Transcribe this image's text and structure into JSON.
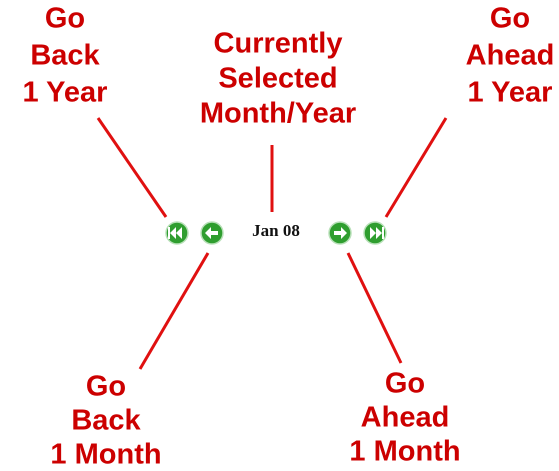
{
  "callouts": {
    "back_year": [
      "Go",
      "Back",
      "1 Year"
    ],
    "current": [
      "Currently",
      "Selected",
      "Month/Year"
    ],
    "ahead_year": [
      "Go",
      "Ahead",
      "1 Year"
    ],
    "back_month": [
      "Go",
      "Back",
      "1 Month"
    ],
    "ahead_month": [
      "Go",
      "Ahead",
      "1 Month"
    ]
  },
  "navigator": {
    "current_label": "Jan 08"
  }
}
